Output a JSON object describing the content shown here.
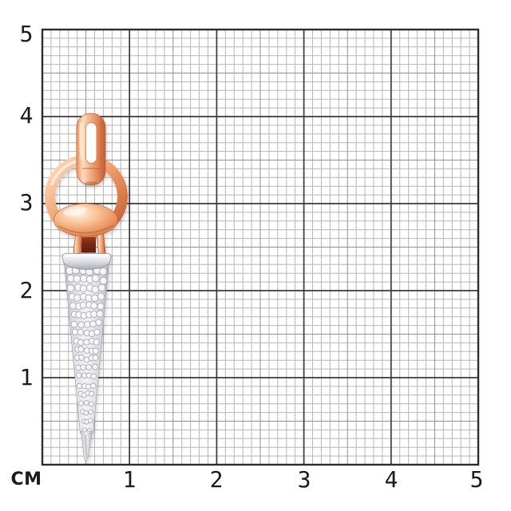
{
  "ruler": {
    "unit_label": "СМ",
    "x_axis": {
      "labels": [
        "1",
        "2",
        "3",
        "4",
        "5"
      ]
    },
    "y_axis": {
      "labels": [
        "5",
        "4",
        "3",
        "2",
        "1"
      ]
    },
    "colors": {
      "background": "#ffffff",
      "minor_line": "#b7b7b7",
      "half_line": "#909090",
      "major_line": "#3a3a3a",
      "border": "#2d2d2d",
      "label_text": "#1b1b1b"
    }
  },
  "pendant": {
    "description": "Rose gold horsebit pendant with white gold diamond pave drop cone",
    "colors": {
      "rose_gold_highlight": "#ffe9d6",
      "rose_gold_light": "#f8c9a4",
      "rose_gold_mid": "#eb9a69",
      "rose_gold_deep": "#d0703f",
      "rose_gold_dark": "#a34a2b",
      "slot_dark": "#6b2112",
      "white_gold_light": "#fdfdfe",
      "white_gold_mid": "#d9d9df",
      "white_gold_dark": "#b0b0ba",
      "diamond_fill": "#f5f5f8",
      "diamond_edge": "#aaaab4"
    }
  }
}
